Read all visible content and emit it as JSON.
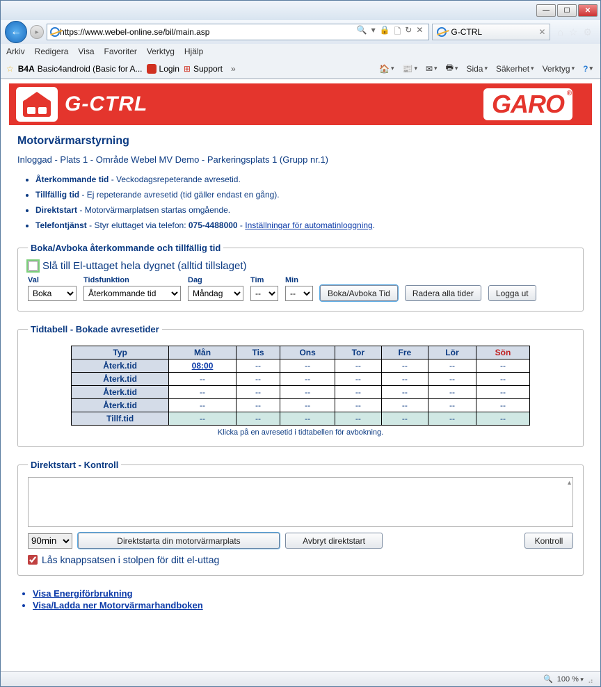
{
  "window": {
    "url_prefix": "https://www.",
    "url_host": "webel-online.se",
    "url_path": "/bil/main.asp",
    "tab_title": "G-CTRL"
  },
  "menubar": [
    "Arkiv",
    "Redigera",
    "Visa",
    "Favoriter",
    "Verktyg",
    "Hjälp"
  ],
  "favbar": {
    "basic4": "Basic4android (Basic for A...",
    "login": "Login",
    "support": "Support",
    "cmds": [
      "Sida",
      "Säkerhet",
      "Verktyg"
    ]
  },
  "banner": {
    "gctrl": "G-CTRL",
    "garo": "GARO"
  },
  "title": "Motorvärmarstyrning",
  "breadcrumb": "Inloggad - Plats 1 - Område Webel MV Demo - Parkeringsplats 1 (Grupp nr.1)",
  "defs": {
    "aterk_b": "Återkommande tid",
    "aterk_t": " - Veckodagsrepeterande avresetid.",
    "tillf_b": "Tillfällig tid",
    "tillf_t": " - Ej repeterande avresetid (tid gäller endast en gång).",
    "direkt_b": "Direktstart",
    "direkt_t": " - Motorvärmarplatsen startas omgående.",
    "tel_b": "Telefontjänst",
    "tel_t1": " - Styr eluttaget via telefon: ",
    "tel_num": "075-4488000",
    "tel_t2": " - ",
    "tel_link": "Inställningar för automatinloggning",
    "tel_dot": "."
  },
  "boka": {
    "legend": "Boka/Avboka återkommande och tillfällig tid",
    "alwayson": "Slå till El-uttaget hela dygnet (alltid tillslaget)",
    "labels": {
      "val": "Val",
      "tidsf": "Tidsfunktion",
      "dag": "Dag",
      "tim": "Tim",
      "min": "Min"
    },
    "opts": {
      "val": "Boka",
      "tidsf": "Återkommande tid",
      "dag": "Måndag",
      "tim": "--",
      "min": "--"
    },
    "btn_boka": "Boka/Avboka Tid",
    "btn_radera": "Radera alla tider",
    "btn_logga": "Logga ut"
  },
  "tidtab": {
    "legend": "Tidtabell - Bokade avresetider",
    "headers": [
      "Typ",
      "Mån",
      "Tis",
      "Ons",
      "Tor",
      "Fre",
      "Lör",
      "Sön"
    ],
    "rows": [
      {
        "typ": "Återk.tid",
        "cells": [
          "08:00",
          "--",
          "--",
          "--",
          "--",
          "--",
          "--"
        ],
        "link0": true
      },
      {
        "typ": "Återk.tid",
        "cells": [
          "--",
          "--",
          "--",
          "--",
          "--",
          "--",
          "--"
        ]
      },
      {
        "typ": "Återk.tid",
        "cells": [
          "--",
          "--",
          "--",
          "--",
          "--",
          "--",
          "--"
        ]
      },
      {
        "typ": "Återk.tid",
        "cells": [
          "--",
          "--",
          "--",
          "--",
          "--",
          "--",
          "--"
        ]
      },
      {
        "typ": "Tillf.tid",
        "cells": [
          "--",
          "--",
          "--",
          "--",
          "--",
          "--",
          "--"
        ],
        "tillf": true
      }
    ],
    "note": "Klicka på en avresetid i tidtabellen för avbokning."
  },
  "direkt": {
    "legend": "Direktstart - Kontroll",
    "duration": "90min",
    "btn_start": "Direktstarta din motorvärmarplats",
    "btn_avbryt": "Avbryt direktstart",
    "btn_kontroll": "Kontroll",
    "lock": "Lås knappsatsen i stolpen för ditt el-uttag"
  },
  "links": {
    "energi": "Visa Energiförbrukning",
    "handbok": "Visa/Ladda ner Motorvärmarhandboken"
  },
  "status": {
    "zoom": "100 %"
  },
  "colors": {
    "brand_red": "#e4352d",
    "link_blue": "#0b3a82"
  }
}
